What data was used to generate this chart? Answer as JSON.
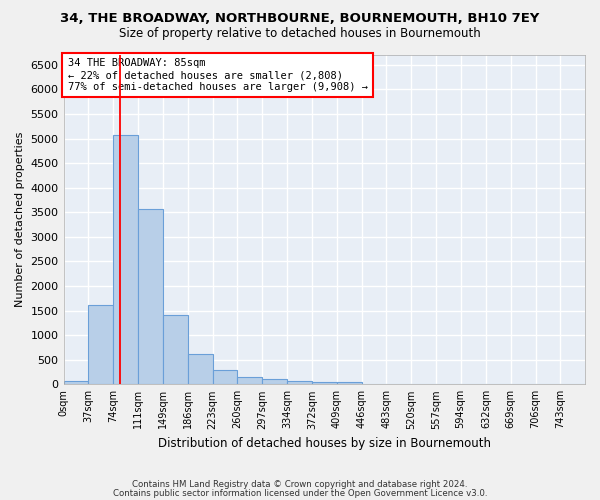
{
  "title": "34, THE BROADWAY, NORTHBOURNE, BOURNEMOUTH, BH10 7EY",
  "subtitle": "Size of property relative to detached houses in Bournemouth",
  "xlabel": "Distribution of detached houses by size in Bournemouth",
  "ylabel": "Number of detached properties",
  "footer1": "Contains HM Land Registry data © Crown copyright and database right 2024.",
  "footer2": "Contains public sector information licensed under the Open Government Licence v3.0.",
  "bar_color": "#b8cfe8",
  "bar_edge_color": "#6a9fd8",
  "background_color": "#e8eef6",
  "grid_color": "#ffffff",
  "annotation_text": "34 THE BROADWAY: 85sqm\n← 22% of detached houses are smaller (2,808)\n77% of semi-detached houses are larger (9,908) →",
  "property_line_x": 85,
  "tick_labels": [
    "0sqm",
    "37sqm",
    "74sqm",
    "111sqm",
    "149sqm",
    "186sqm",
    "223sqm",
    "260sqm",
    "297sqm",
    "334sqm",
    "372sqm",
    "409sqm",
    "446sqm",
    "483sqm",
    "520sqm",
    "557sqm",
    "594sqm",
    "632sqm",
    "669sqm",
    "706sqm",
    "743sqm"
  ],
  "bin_edges": [
    0,
    37,
    74,
    111,
    149,
    186,
    223,
    260,
    297,
    334,
    372,
    409,
    446,
    483,
    520,
    557,
    594,
    632,
    669,
    706,
    743,
    780
  ],
  "values": [
    60,
    1620,
    5070,
    3570,
    1410,
    620,
    290,
    140,
    100,
    75,
    55,
    45,
    0,
    0,
    0,
    0,
    0,
    0,
    0,
    0,
    0
  ],
  "ylim": [
    0,
    6700
  ],
  "yticks": [
    0,
    500,
    1000,
    1500,
    2000,
    2500,
    3000,
    3500,
    4000,
    4500,
    5000,
    5500,
    6000,
    6500
  ]
}
